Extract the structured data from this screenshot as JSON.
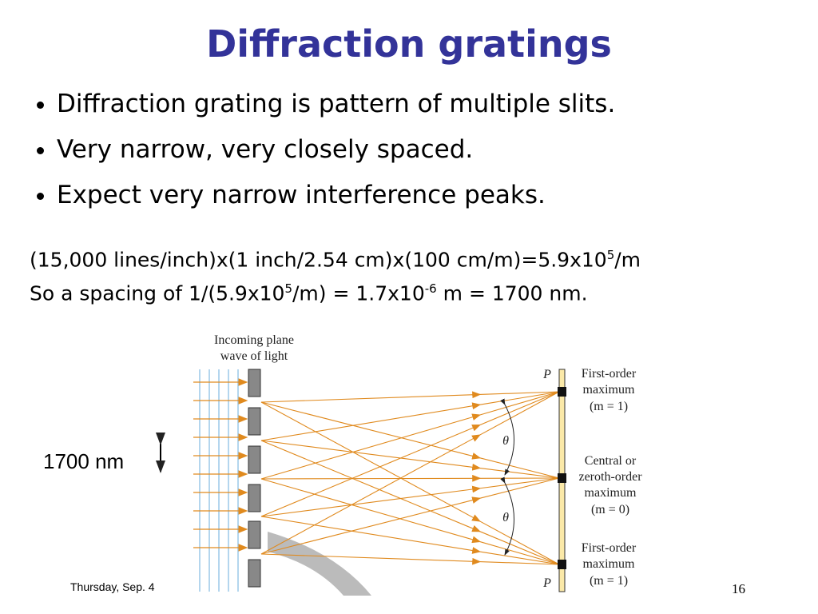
{
  "title": "Diffraction gratings",
  "bullets": [
    "Diffraction grating is pattern of multiple slits.",
    "Very narrow, very closely spaced.",
    "Expect very narrow interference peaks."
  ],
  "calculation": [
    [
      "(15,000 lines/inch)x(1 inch/2.54 cm)x(100 cm/m)=5.9x10",
      "5",
      "/m"
    ],
    [
      "So a spacing of 1/(5.9x10",
      "5",
      "/m) = 1.7x10",
      "-6",
      " m = 1700 nm."
    ]
  ],
  "spacing_label": "1700 nm",
  "figure": {
    "incoming_label": [
      "Incoming plane",
      "wave of light"
    ],
    "p_labels": [
      "P",
      "P"
    ],
    "theta_labels": [
      "θ",
      "θ"
    ],
    "first_order_top": [
      "First-order",
      "maximum",
      "(m = 1)"
    ],
    "central": [
      "Central or",
      "zeroth-order",
      "maximum",
      "(m = 0)"
    ],
    "first_order_bottom": [
      "First-order",
      "maximum",
      "(m = 1)"
    ]
  },
  "footer": {
    "date": "Thursday, Sep. 4",
    "page": "16"
  }
}
